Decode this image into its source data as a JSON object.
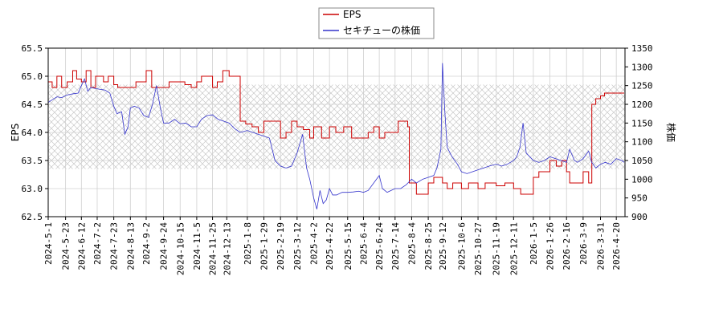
{
  "chart_data": {
    "type": "line",
    "title": "",
    "legend": {
      "placement": "top-center",
      "entries": [
        {
          "label": "EPS",
          "color": "#cc0000"
        },
        {
          "label": "セキチューの株価",
          "color": "#3333cc"
        }
      ]
    },
    "left_axis": {
      "label": "EPS",
      "range": [
        62.5,
        65.5
      ],
      "ticks": [
        "62.5",
        "63.0",
        "63.5",
        "64.0",
        "64.5",
        "65.0",
        "65.5"
      ]
    },
    "right_axis": {
      "label": "株価",
      "range": [
        900,
        1350
      ],
      "ticks": [
        "900",
        "950",
        "1000",
        "1050",
        "1100",
        "1150",
        "1200",
        "1250",
        "1300",
        "1350"
      ]
    },
    "x_axis": {
      "range": [
        "2024-05-01",
        "2026-05-01"
      ],
      "ticks": [
        "2024-5-1",
        "2024-5-23",
        "2024-6-12",
        "2024-7-2",
        "2024-7-23",
        "2024-8-13",
        "2024-9-2",
        "2024-9-24",
        "2024-10-15",
        "2024-11-5",
        "2024-11-25",
        "2024-12-13",
        "2025-1-8",
        "2025-1-29",
        "2025-2-19",
        "2025-3-12",
        "2025-4-2",
        "2025-4-22",
        "2025-5-15",
        "2025-6-4",
        "2025-6-24",
        "2025-7-14",
        "2025-8-4",
        "2025-8-25",
        "2025-9-12",
        "2025-10-6",
        "2025-10-27",
        "2025-11-19",
        "2025-12-11",
        "2026-1-5",
        "2026-1-26",
        "2026-2-16",
        "2026-3-9",
        "2026-3-31",
        "2026-4-20"
      ]
    },
    "grid": true,
    "shaded_band": {
      "axis": "left",
      "range": [
        63.35,
        64.85
      ],
      "pattern": "crosshatch"
    },
    "series": [
      {
        "name": "EPS",
        "axis": "left",
        "color": "#cc0000",
        "points": [
          [
            "2024-05-01",
            64.9
          ],
          [
            "2024-05-06",
            64.8
          ],
          [
            "2024-05-12",
            65.0
          ],
          [
            "2024-05-18",
            64.8
          ],
          [
            "2024-05-25",
            64.9
          ],
          [
            "2024-06-01",
            65.1
          ],
          [
            "2024-06-06",
            64.95
          ],
          [
            "2024-06-12",
            64.9
          ],
          [
            "2024-06-18",
            65.1
          ],
          [
            "2024-06-24",
            64.8
          ],
          [
            "2024-06-30",
            65.0
          ],
          [
            "2024-07-10",
            64.9
          ],
          [
            "2024-07-16",
            65.0
          ],
          [
            "2024-07-23",
            64.85
          ],
          [
            "2024-07-28",
            64.8
          ],
          [
            "2024-08-13",
            64.8
          ],
          [
            "2024-08-20",
            64.9
          ],
          [
            "2024-09-02",
            65.1
          ],
          [
            "2024-09-09",
            64.8
          ],
          [
            "2024-09-24",
            64.8
          ],
          [
            "2024-10-01",
            64.9
          ],
          [
            "2024-10-21",
            64.85
          ],
          [
            "2024-10-29",
            64.8
          ],
          [
            "2024-11-05",
            64.9
          ],
          [
            "2024-11-11",
            65.0
          ],
          [
            "2024-11-25",
            64.8
          ],
          [
            "2024-12-01",
            64.9
          ],
          [
            "2024-12-08",
            65.1
          ],
          [
            "2024-12-16",
            65.0
          ],
          [
            "2024-12-30",
            64.2
          ],
          [
            "2025-01-06",
            64.15
          ],
          [
            "2025-01-14",
            64.1
          ],
          [
            "2025-01-22",
            64.0
          ],
          [
            "2025-01-29",
            64.2
          ],
          [
            "2025-02-19",
            63.9
          ],
          [
            "2025-02-26",
            64.0
          ],
          [
            "2025-03-05",
            64.2
          ],
          [
            "2025-03-12",
            64.1
          ],
          [
            "2025-03-20",
            64.05
          ],
          [
            "2025-03-28",
            63.9
          ],
          [
            "2025-04-02",
            64.1
          ],
          [
            "2025-04-12",
            63.9
          ],
          [
            "2025-04-22",
            64.1
          ],
          [
            "2025-04-30",
            64.0
          ],
          [
            "2025-05-10",
            64.1
          ],
          [
            "2025-05-20",
            63.9
          ],
          [
            "2025-06-04",
            63.9
          ],
          [
            "2025-06-10",
            64.0
          ],
          [
            "2025-06-17",
            64.1
          ],
          [
            "2025-06-24",
            63.9
          ],
          [
            "2025-07-01",
            64.0
          ],
          [
            "2025-07-14",
            64.0
          ],
          [
            "2025-07-18",
            64.2
          ],
          [
            "2025-07-30",
            64.1
          ],
          [
            "2025-08-01",
            63.1
          ],
          [
            "2025-08-10",
            62.9
          ],
          [
            "2025-08-20",
            62.9
          ],
          [
            "2025-08-25",
            63.1
          ],
          [
            "2025-09-01",
            63.2
          ],
          [
            "2025-09-12",
            63.1
          ],
          [
            "2025-09-18",
            63.0
          ],
          [
            "2025-09-25",
            63.1
          ],
          [
            "2025-10-06",
            63.0
          ],
          [
            "2025-10-15",
            63.1
          ],
          [
            "2025-10-27",
            63.0
          ],
          [
            "2025-11-05",
            63.1
          ],
          [
            "2025-11-19",
            63.05
          ],
          [
            "2025-11-30",
            63.1
          ],
          [
            "2025-12-11",
            63.0
          ],
          [
            "2025-12-20",
            62.9
          ],
          [
            "2025-12-30",
            62.9
          ],
          [
            "2026-01-05",
            63.2
          ],
          [
            "2026-01-12",
            63.3
          ],
          [
            "2026-01-26",
            63.5
          ],
          [
            "2026-02-03",
            63.4
          ],
          [
            "2026-02-10",
            63.5
          ],
          [
            "2026-02-16",
            63.3
          ],
          [
            "2026-02-20",
            63.1
          ],
          [
            "2026-03-01",
            63.1
          ],
          [
            "2026-03-09",
            63.3
          ],
          [
            "2026-03-16",
            63.1
          ],
          [
            "2026-03-20",
            64.5
          ],
          [
            "2026-03-25",
            64.6
          ],
          [
            "2026-03-31",
            64.65
          ],
          [
            "2026-04-05",
            64.7
          ],
          [
            "2026-04-30",
            64.7
          ]
        ]
      },
      {
        "name": "セキチューの株価",
        "axis": "right",
        "color": "#3333cc",
        "points": [
          [
            "2024-05-01",
            1205
          ],
          [
            "2024-05-06",
            1212
          ],
          [
            "2024-05-12",
            1220
          ],
          [
            "2024-05-18",
            1218
          ],
          [
            "2024-05-25",
            1225
          ],
          [
            "2024-06-01",
            1228
          ],
          [
            "2024-06-08",
            1230
          ],
          [
            "2024-06-12",
            1250
          ],
          [
            "2024-06-16",
            1268
          ],
          [
            "2024-06-20",
            1235
          ],
          [
            "2024-06-24",
            1245
          ],
          [
            "2024-06-30",
            1242
          ],
          [
            "2024-07-06",
            1240
          ],
          [
            "2024-07-12",
            1238
          ],
          [
            "2024-07-18",
            1230
          ],
          [
            "2024-07-23",
            1195
          ],
          [
            "2024-07-27",
            1175
          ],
          [
            "2024-08-02",
            1180
          ],
          [
            "2024-08-06",
            1120
          ],
          [
            "2024-08-10",
            1140
          ],
          [
            "2024-08-13",
            1190
          ],
          [
            "2024-08-18",
            1195
          ],
          [
            "2024-08-24",
            1190
          ],
          [
            "2024-08-30",
            1170
          ],
          [
            "2024-09-05",
            1165
          ],
          [
            "2024-09-10",
            1200
          ],
          [
            "2024-09-15",
            1250
          ],
          [
            "2024-09-20",
            1190
          ],
          [
            "2024-09-24",
            1150
          ],
          [
            "2024-10-01",
            1150
          ],
          [
            "2024-10-08",
            1160
          ],
          [
            "2024-10-15",
            1148
          ],
          [
            "2024-10-22",
            1150
          ],
          [
            "2024-10-29",
            1140
          ],
          [
            "2024-11-05",
            1140
          ],
          [
            "2024-11-11",
            1160
          ],
          [
            "2024-11-18",
            1170
          ],
          [
            "2024-11-25",
            1172
          ],
          [
            "2024-12-02",
            1160
          ],
          [
            "2024-12-09",
            1155
          ],
          [
            "2024-12-16",
            1150
          ],
          [
            "2024-12-23",
            1135
          ],
          [
            "2024-12-30",
            1125
          ],
          [
            "2025-01-08",
            1130
          ],
          [
            "2025-01-15",
            1125
          ],
          [
            "2025-01-22",
            1120
          ],
          [
            "2025-01-29",
            1115
          ],
          [
            "2025-02-05",
            1110
          ],
          [
            "2025-02-12",
            1050
          ],
          [
            "2025-02-19",
            1035
          ],
          [
            "2025-02-26",
            1030
          ],
          [
            "2025-03-05",
            1035
          ],
          [
            "2025-03-12",
            1070
          ],
          [
            "2025-03-19",
            1120
          ],
          [
            "2025-03-24",
            1030
          ],
          [
            "2025-03-28",
            1000
          ],
          [
            "2025-04-02",
            950
          ],
          [
            "2025-04-06",
            920
          ],
          [
            "2025-04-10",
            970
          ],
          [
            "2025-04-14",
            935
          ],
          [
            "2025-04-18",
            945
          ],
          [
            "2025-04-22",
            975
          ],
          [
            "2025-04-26",
            958
          ],
          [
            "2025-05-01",
            958
          ],
          [
            "2025-05-08",
            965
          ],
          [
            "2025-05-15",
            965
          ],
          [
            "2025-05-22",
            966
          ],
          [
            "2025-05-29",
            968
          ],
          [
            "2025-06-04",
            965
          ],
          [
            "2025-06-10",
            970
          ],
          [
            "2025-06-17",
            990
          ],
          [
            "2025-06-24",
            1010
          ],
          [
            "2025-06-28",
            975
          ],
          [
            "2025-07-04",
            965
          ],
          [
            "2025-07-14",
            975
          ],
          [
            "2025-07-21",
            975
          ],
          [
            "2025-07-28",
            985
          ],
          [
            "2025-08-04",
            1000
          ],
          [
            "2025-08-10",
            990
          ],
          [
            "2025-08-18",
            1000
          ],
          [
            "2025-08-25",
            1005
          ],
          [
            "2025-09-01",
            1010
          ],
          [
            "2025-09-05",
            1030
          ],
          [
            "2025-09-10",
            1080
          ],
          [
            "2025-09-12",
            1310
          ],
          [
            "2025-09-15",
            1180
          ],
          [
            "2025-09-18",
            1085
          ],
          [
            "2025-09-24",
            1060
          ],
          [
            "2025-10-01",
            1040
          ],
          [
            "2025-10-06",
            1020
          ],
          [
            "2025-10-13",
            1015
          ],
          [
            "2025-10-20",
            1020
          ],
          [
            "2025-10-27",
            1025
          ],
          [
            "2025-11-03",
            1030
          ],
          [
            "2025-11-10",
            1035
          ],
          [
            "2025-11-19",
            1040
          ],
          [
            "2025-11-26",
            1035
          ],
          [
            "2025-12-03",
            1040
          ],
          [
            "2025-12-11",
            1050
          ],
          [
            "2025-12-15",
            1060
          ],
          [
            "2025-12-19",
            1085
          ],
          [
            "2025-12-23",
            1150
          ],
          [
            "2025-12-27",
            1070
          ],
          [
            "2026-01-05",
            1050
          ],
          [
            "2026-01-12",
            1045
          ],
          [
            "2026-01-19",
            1050
          ],
          [
            "2026-01-26",
            1060
          ],
          [
            "2026-02-02",
            1055
          ],
          [
            "2026-02-09",
            1050
          ],
          [
            "2026-02-16",
            1045
          ],
          [
            "2026-02-20",
            1080
          ],
          [
            "2026-02-26",
            1050
          ],
          [
            "2026-03-02",
            1045
          ],
          [
            "2026-03-09",
            1055
          ],
          [
            "2026-03-16",
            1075
          ],
          [
            "2026-03-20",
            1045
          ],
          [
            "2026-03-25",
            1030
          ],
          [
            "2026-03-31",
            1040
          ],
          [
            "2026-04-06",
            1045
          ],
          [
            "2026-04-13",
            1040
          ],
          [
            "2026-04-20",
            1055
          ],
          [
            "2026-04-27",
            1050
          ],
          [
            "2026-04-30",
            1045
          ]
        ]
      }
    ]
  }
}
